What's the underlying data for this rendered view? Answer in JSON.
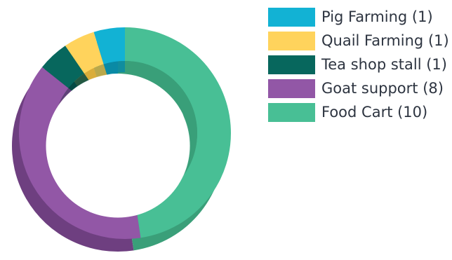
{
  "chart_data": {
    "type": "pie",
    "categories": [
      "Pig Farming",
      "Quail Farming",
      "Tea shop stall",
      "Goat support",
      "Food Cart"
    ],
    "values": [
      1,
      1,
      1,
      8,
      10
    ],
    "colors": [
      "#12b2d4",
      "#ffd35c",
      "#07675d",
      "#9257a6",
      "#48bf95"
    ],
    "darkColors": [
      "#0b8aa5",
      "#d9ad3b",
      "#044a44",
      "#6e3f80",
      "#3a9f79"
    ],
    "legend": [
      {
        "label": "Pig Farming (1)",
        "color": "#12b2d4"
      },
      {
        "label": "Quail Farming (1)",
        "color": "#ffd35c"
      },
      {
        "label": "Tea shop stall (1)",
        "color": "#07675d"
      },
      {
        "label": "Goat support (8)",
        "color": "#9257a6"
      },
      {
        "label": "Food Cart (10)",
        "color": "#48bf95"
      }
    ],
    "legend_position": "right",
    "donut": true
  }
}
